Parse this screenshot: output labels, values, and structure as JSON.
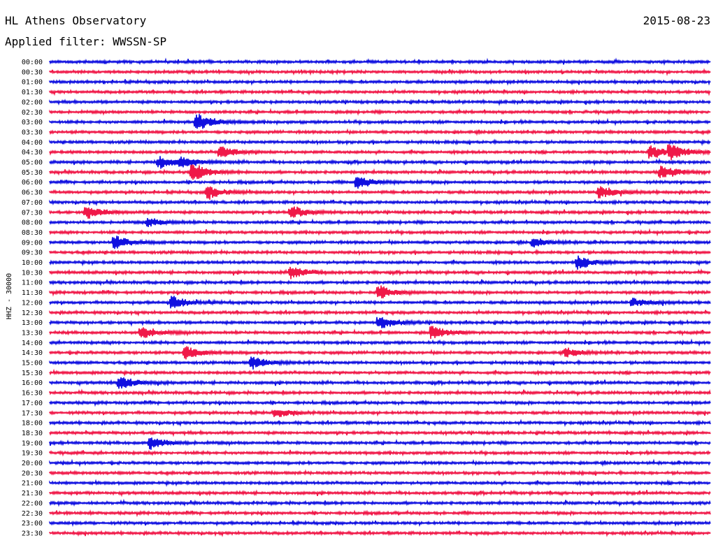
{
  "header": {
    "station": "HL Athens Observatory",
    "date": "2015-08-23",
    "filter_label": "Applied filter:",
    "filter_value": "WWSSN-SP"
  },
  "chart_data": {
    "type": "line",
    "title": "HL Athens Observatory",
    "subtitle": "Applied filter: WWSSN-SP",
    "date": "2015-08-23",
    "ylabel": "HHZ - 30000",
    "xlabel": "",
    "colors": {
      "even_rows": "#1010e0",
      "odd_rows": "#f01848"
    },
    "rows": [
      "00:00",
      "00:30",
      "01:00",
      "01:30",
      "02:00",
      "02:30",
      "03:00",
      "03:30",
      "04:00",
      "04:30",
      "05:00",
      "05:30",
      "06:00",
      "06:30",
      "07:00",
      "07:30",
      "08:00",
      "08:30",
      "09:00",
      "09:30",
      "10:00",
      "10:30",
      "11:00",
      "11:30",
      "12:00",
      "12:30",
      "13:00",
      "13:30",
      "14:00",
      "14:30",
      "15:00",
      "15:30",
      "16:00",
      "16:30",
      "17:00",
      "17:30",
      "18:00",
      "18:30",
      "19:00",
      "19:30",
      "20:00",
      "20:30",
      "21:00",
      "21:30",
      "22:00",
      "22:30",
      "23:00",
      "23:30"
    ],
    "row_duration_minutes": 30,
    "events": [
      {
        "row": "03:00",
        "minute": 6.7,
        "amplitude": "large"
      },
      {
        "row": "04:30",
        "minute": 7.8,
        "amplitude": "medium"
      },
      {
        "row": "04:30",
        "minute": 27.3,
        "amplitude": "medium"
      },
      {
        "row": "04:30",
        "minute": 28.2,
        "amplitude": "medium"
      },
      {
        "row": "05:00",
        "minute": 5.0,
        "amplitude": "medium"
      },
      {
        "row": "05:00",
        "minute": 6.0,
        "amplitude": "small"
      },
      {
        "row": "05:30",
        "minute": 6.5,
        "amplitude": "large"
      },
      {
        "row": "05:30",
        "minute": 27.8,
        "amplitude": "medium"
      },
      {
        "row": "06:00",
        "minute": 14.0,
        "amplitude": "medium"
      },
      {
        "row": "06:30",
        "minute": 7.2,
        "amplitude": "medium"
      },
      {
        "row": "06:30",
        "minute": 25.0,
        "amplitude": "medium"
      },
      {
        "row": "07:30",
        "minute": 1.7,
        "amplitude": "medium"
      },
      {
        "row": "07:30",
        "minute": 11.0,
        "amplitude": "medium"
      },
      {
        "row": "08:00",
        "minute": 4.5,
        "amplitude": "small"
      },
      {
        "row": "09:00",
        "minute": 3.0,
        "amplitude": "medium"
      },
      {
        "row": "09:00",
        "minute": 22.0,
        "amplitude": "small"
      },
      {
        "row": "10:00",
        "minute": 24.0,
        "amplitude": "medium"
      },
      {
        "row": "10:30",
        "minute": 11.0,
        "amplitude": "medium"
      },
      {
        "row": "11:30",
        "minute": 15.0,
        "amplitude": "medium"
      },
      {
        "row": "12:00",
        "minute": 5.6,
        "amplitude": "medium"
      },
      {
        "row": "12:00",
        "minute": 26.5,
        "amplitude": "small"
      },
      {
        "row": "13:00",
        "minute": 15.0,
        "amplitude": "medium"
      },
      {
        "row": "13:30",
        "minute": 4.2,
        "amplitude": "medium"
      },
      {
        "row": "13:30",
        "minute": 17.4,
        "amplitude": "medium"
      },
      {
        "row": "14:30",
        "minute": 6.2,
        "amplitude": "medium"
      },
      {
        "row": "14:30",
        "minute": 23.5,
        "amplitude": "small"
      },
      {
        "row": "15:00",
        "minute": 9.2,
        "amplitude": "medium"
      },
      {
        "row": "16:00",
        "minute": 3.2,
        "amplitude": "medium"
      },
      {
        "row": "17:30",
        "minute": 10.3,
        "amplitude": "small"
      },
      {
        "row": "19:00",
        "minute": 4.6,
        "amplitude": "medium"
      }
    ]
  }
}
